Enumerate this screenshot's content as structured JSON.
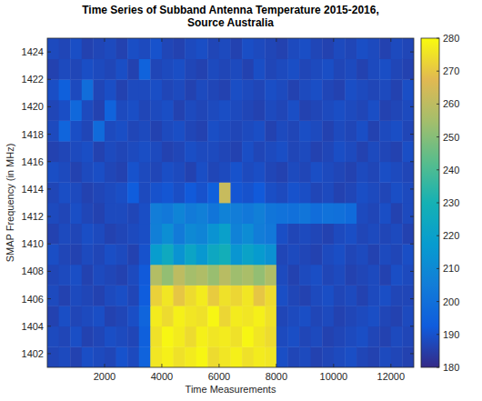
{
  "chart_data": {
    "type": "heatmap",
    "title": "Time Series of Subband Antenna Temperature 2015-2016, Source Australia",
    "x_label": "Time Measurements",
    "y_label": "SMAP Frequency (in MHz)",
    "x": [
      200,
      600,
      1000,
      1400,
      1800,
      2200,
      2600,
      3000,
      3400,
      3800,
      4200,
      4600,
      5000,
      5400,
      5800,
      6200,
      6600,
      7000,
      7400,
      7800,
      8200,
      8600,
      9000,
      9400,
      9800,
      10200,
      10600,
      11000,
      11400,
      11800,
      12200,
      12600
    ],
    "y": [
      1401.75,
      1403.25,
      1404.75,
      1406.25,
      1407.75,
      1409.25,
      1410.75,
      1412.25,
      1413.75,
      1415.25,
      1416.75,
      1418.25,
      1419.75,
      1421.25,
      1422.75,
      1424.25
    ],
    "z": [
      [
        187,
        188,
        186,
        189,
        188,
        187,
        190,
        188,
        195,
        276,
        278,
        275,
        277,
        279,
        274,
        276,
        278,
        275,
        277,
        276,
        189,
        187,
        188,
        186,
        187,
        188,
        189,
        187,
        186,
        188,
        187,
        186
      ],
      [
        188,
        187,
        189,
        186,
        187,
        189,
        188,
        187,
        194,
        275,
        279,
        277,
        274,
        278,
        276,
        277,
        275,
        279,
        276,
        274,
        188,
        189,
        187,
        188,
        186,
        187,
        188,
        189,
        187,
        186,
        188,
        187
      ],
      [
        186,
        189,
        187,
        188,
        189,
        186,
        187,
        189,
        196,
        277,
        274,
        278,
        276,
        275,
        279,
        273,
        277,
        276,
        278,
        275,
        187,
        188,
        189,
        187,
        188,
        186,
        187,
        188,
        189,
        187,
        186,
        188
      ],
      [
        188,
        186,
        188,
        187,
        186,
        188,
        189,
        187,
        193,
        272,
        276,
        270,
        274,
        277,
        271,
        275,
        273,
        276,
        270,
        274,
        189,
        187,
        186,
        188,
        189,
        187,
        188,
        186,
        188,
        189,
        187,
        187
      ],
      [
        187,
        188,
        189,
        186,
        188,
        187,
        186,
        188,
        192,
        258,
        252,
        260,
        255,
        257,
        253,
        259,
        254,
        256,
        252,
        257,
        188,
        186,
        188,
        189,
        187,
        188,
        186,
        187,
        188,
        186,
        189,
        188
      ],
      [
        189,
        187,
        186,
        188,
        187,
        189,
        188,
        186,
        190,
        218,
        225,
        214,
        222,
        216,
        224,
        228,
        215,
        221,
        217,
        213,
        187,
        188,
        187,
        186,
        188,
        189,
        187,
        188,
        186,
        188,
        187,
        189
      ],
      [
        186,
        188,
        187,
        189,
        188,
        186,
        187,
        188,
        189,
        206,
        212,
        204,
        210,
        208,
        214,
        220,
        207,
        211,
        205,
        203,
        189,
        187,
        188,
        187,
        186,
        188,
        189,
        187,
        188,
        187,
        188,
        186
      ],
      [
        188,
        187,
        189,
        187,
        186,
        188,
        188,
        187,
        189,
        205,
        203,
        208,
        204,
        206,
        202,
        207,
        205,
        203,
        206,
        202,
        201,
        200,
        202,
        199,
        201,
        200,
        198,
        188,
        187,
        189,
        186,
        188
      ],
      [
        187,
        189,
        188,
        186,
        187,
        188,
        189,
        193,
        188,
        190,
        191,
        189,
        192,
        190,
        194,
        262,
        191,
        190,
        192,
        189,
        188,
        190,
        189,
        187,
        188,
        186,
        187,
        189,
        188,
        187,
        189,
        188
      ],
      [
        189,
        188,
        186,
        188,
        189,
        187,
        186,
        190,
        188,
        187,
        189,
        188,
        186,
        189,
        187,
        188,
        190,
        188,
        189,
        187,
        186,
        188,
        187,
        189,
        188,
        187,
        186,
        188,
        187,
        189,
        188,
        187
      ],
      [
        186,
        187,
        188,
        189,
        186,
        188,
        187,
        188,
        189,
        188,
        186,
        187,
        189,
        188,
        188,
        187,
        186,
        189,
        187,
        188,
        189,
        187,
        188,
        186,
        187,
        189,
        188,
        186,
        188,
        187,
        186,
        189
      ],
      [
        188,
        196,
        189,
        187,
        198,
        188,
        189,
        187,
        188,
        186,
        188,
        189,
        187,
        186,
        189,
        188,
        187,
        188,
        189,
        186,
        188,
        187,
        189,
        188,
        186,
        188,
        187,
        189,
        186,
        188,
        189,
        187
      ],
      [
        187,
        189,
        197,
        188,
        186,
        195,
        188,
        189,
        187,
        188,
        189,
        186,
        188,
        187,
        188,
        189,
        188,
        187,
        186,
        188,
        187,
        189,
        186,
        187,
        188,
        189,
        188,
        187,
        189,
        186,
        187,
        188
      ],
      [
        189,
        194,
        188,
        199,
        187,
        189,
        186,
        188,
        188,
        189,
        187,
        188,
        186,
        188,
        187,
        186,
        189,
        188,
        187,
        189,
        188,
        186,
        188,
        189,
        187,
        186,
        189,
        188,
        187,
        188,
        186,
        189
      ],
      [
        186,
        188,
        187,
        189,
        188,
        187,
        189,
        186,
        195,
        187,
        188,
        189,
        187,
        186,
        188,
        187,
        188,
        186,
        189,
        187,
        188,
        189,
        187,
        188,
        189,
        187,
        188,
        186,
        188,
        189,
        187,
        186
      ],
      [
        188,
        187,
        189,
        186,
        187,
        188,
        186,
        189,
        188,
        190,
        187,
        186,
        188,
        189,
        187,
        188,
        186,
        189,
        188,
        187,
        186,
        188,
        189,
        187,
        186,
        188,
        187,
        189,
        188,
        186,
        188,
        187
      ]
    ],
    "xlim": [
      0,
      12800
    ],
    "ylim": [
      1401,
      1425
    ],
    "xticks": [
      2000,
      4000,
      6000,
      8000,
      10000,
      12000
    ],
    "yticks": [
      1402,
      1404,
      1406,
      1408,
      1410,
      1412,
      1414,
      1416,
      1418,
      1420,
      1422,
      1424
    ],
    "colorbar_range": [
      180,
      280
    ],
    "colorbar_ticks": [
      180,
      190,
      200,
      210,
      220,
      230,
      240,
      250,
      260,
      270,
      280
    ]
  }
}
